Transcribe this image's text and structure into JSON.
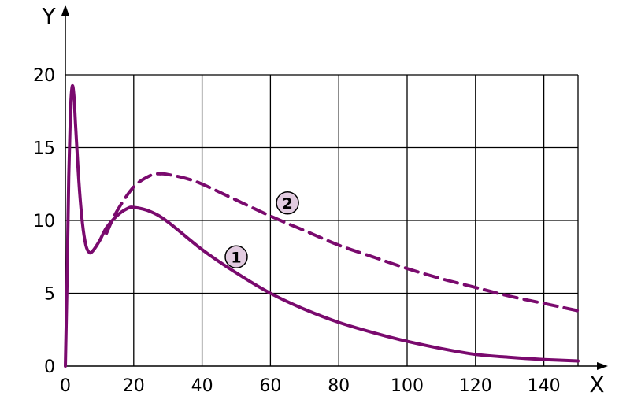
{
  "chart_data": {
    "type": "line",
    "xlabel": "X",
    "ylabel": "Y",
    "xlim": [
      0,
      150
    ],
    "ylim": [
      0,
      20
    ],
    "x_ticks": [
      "0",
      "20",
      "40",
      "60",
      "80",
      "100",
      "120",
      "140"
    ],
    "y_ticks": [
      "0",
      "5",
      "10",
      "15",
      "20"
    ],
    "grid": true,
    "series_color": "#7a0a6e",
    "series": [
      {
        "name": "1",
        "line_style": "solid",
        "points": [
          [
            0,
            0
          ],
          [
            0.5,
            6
          ],
          [
            1,
            13
          ],
          [
            1.5,
            17.5
          ],
          [
            2,
            19.2
          ],
          [
            2.5,
            18.6
          ],
          [
            3,
            16.5
          ],
          [
            4,
            12.5
          ],
          [
            5,
            9.8
          ],
          [
            6,
            8.3
          ],
          [
            7,
            7.8
          ],
          [
            8,
            7.9
          ],
          [
            10,
            8.6
          ],
          [
            12,
            9.5
          ],
          [
            15,
            10.3
          ],
          [
            18,
            10.8
          ],
          [
            20,
            10.9
          ],
          [
            25,
            10.6
          ],
          [
            30,
            9.9
          ],
          [
            40,
            8
          ],
          [
            50,
            6.4
          ],
          [
            60,
            5
          ],
          [
            70,
            3.9
          ],
          [
            80,
            3
          ],
          [
            90,
            2.3
          ],
          [
            100,
            1.7
          ],
          [
            110,
            1.2
          ],
          [
            120,
            0.8
          ],
          [
            130,
            0.6
          ],
          [
            140,
            0.45
          ],
          [
            150,
            0.35
          ]
        ]
      },
      {
        "name": "2",
        "line_style": "dashed",
        "points": [
          [
            12,
            9.1
          ],
          [
            15,
            10.6
          ],
          [
            20,
            12.3
          ],
          [
            25,
            13.1
          ],
          [
            28,
            13.2
          ],
          [
            30,
            13.15
          ],
          [
            35,
            12.9
          ],
          [
            40,
            12.5
          ],
          [
            50,
            11.4
          ],
          [
            60,
            10.3
          ],
          [
            70,
            9.3
          ],
          [
            80,
            8.3
          ],
          [
            90,
            7.5
          ],
          [
            100,
            6.7
          ],
          [
            110,
            6
          ],
          [
            120,
            5.4
          ],
          [
            130,
            4.8
          ],
          [
            140,
            4.3
          ],
          [
            150,
            3.8
          ]
        ]
      }
    ],
    "markers": [
      {
        "label": "1",
        "x": 50,
        "y": 7.5
      },
      {
        "label": "2",
        "x": 65,
        "y": 11.2
      }
    ]
  }
}
